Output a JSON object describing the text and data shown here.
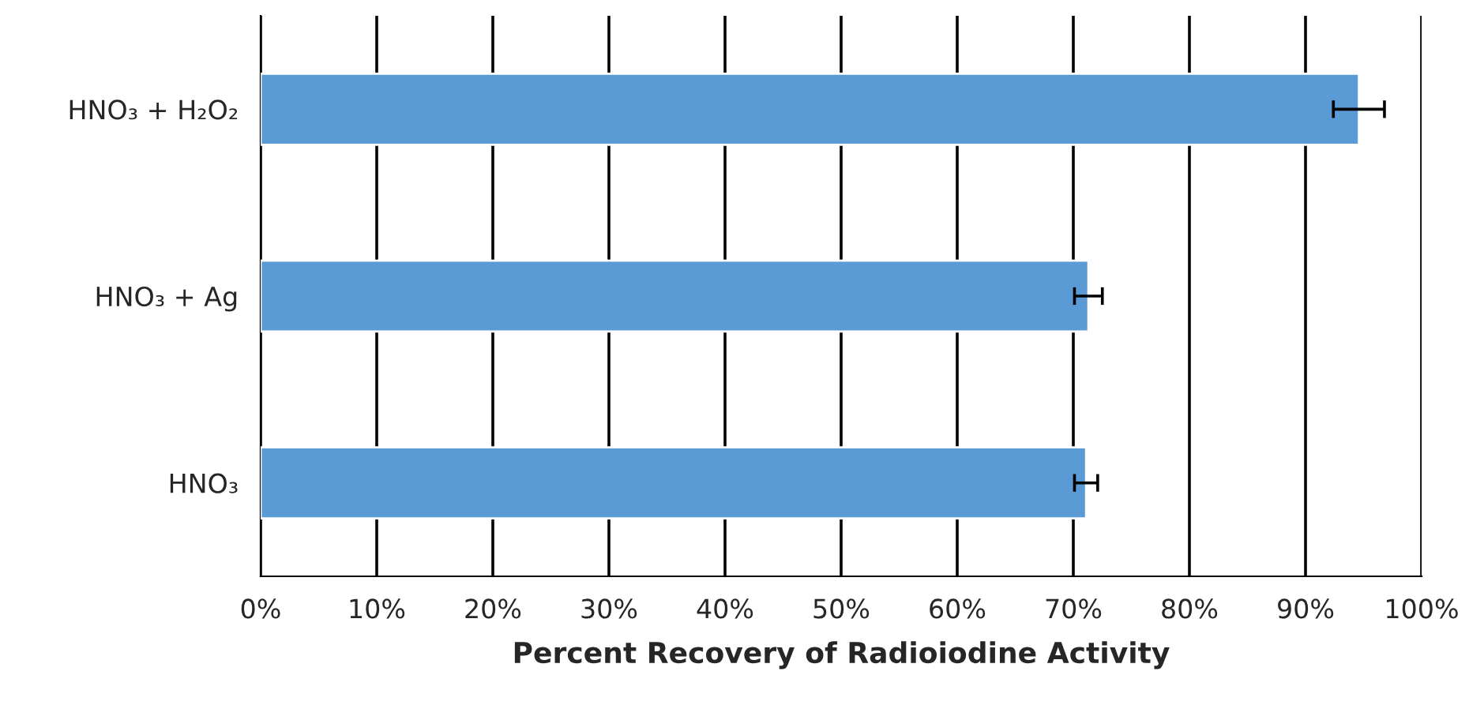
{
  "chart_data": {
    "type": "bar",
    "orientation": "horizontal",
    "xlabel": "Percent Recovery of Radioiodine Activity",
    "categories": [
      "HNO₃ + H₂O₂",
      "HNO₃ + Ag",
      "HNO₃"
    ],
    "values": [
      94.6,
      71.3,
      71.1
    ],
    "errors": [
      2.2,
      1.2,
      1.0
    ],
    "color": "#5b9bd5",
    "xlim": [
      0,
      100
    ],
    "xticks": [
      {
        "value": 0,
        "label": "0%"
      },
      {
        "value": 10,
        "label": "10%"
      },
      {
        "value": 20,
        "label": "20%"
      },
      {
        "value": 30,
        "label": "30%"
      },
      {
        "value": 40,
        "label": "40%"
      },
      {
        "value": 50,
        "label": "50%"
      },
      {
        "value": 60,
        "label": "60%"
      },
      {
        "value": 70,
        "label": "70%"
      },
      {
        "value": 80,
        "label": "80%"
      },
      {
        "value": 90,
        "label": "90%"
      },
      {
        "value": 100,
        "label": "100%"
      }
    ],
    "grid": "x"
  }
}
